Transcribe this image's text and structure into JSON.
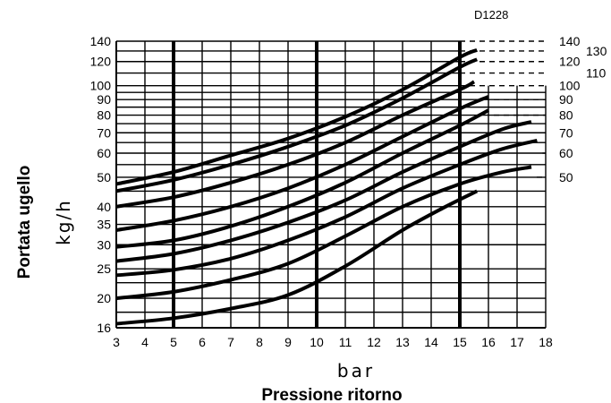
{
  "chart_data": {
    "type": "line",
    "code": "D1228",
    "xlabel": "Pressione ritorno",
    "xunit": "bar",
    "ylabel": "Portata ugello",
    "yunit": "kg/h",
    "xlim": [
      3,
      18
    ],
    "ylim": [
      16,
      140
    ],
    "yscale": "log",
    "grid": true,
    "x_ticks": [
      "3",
      "4",
      "5",
      "6",
      "7",
      "8",
      "9",
      "10",
      "11",
      "12",
      "13",
      "14",
      "15",
      "16",
      "17",
      "18"
    ],
    "y_ticks": [
      "16",
      "20",
      "25",
      "30",
      "35",
      "40",
      "50",
      "60",
      "70",
      "80",
      "90",
      "100",
      "120",
      "140"
    ],
    "right_labels": [
      "140",
      "130",
      "120",
      "110",
      "100",
      "90",
      "80",
      "70",
      "60",
      "50"
    ],
    "emphasized_x": [
      5,
      10,
      15
    ],
    "series": [
      {
        "x": [
          3,
          5,
          7,
          9,
          11,
          13,
          14.5,
          15.6
        ],
        "values": [
          16.5,
          17.2,
          18.5,
          20.5,
          25.5,
          33.5,
          40,
          45
        ]
      },
      {
        "x": [
          3,
          5,
          7,
          9,
          11,
          13,
          15,
          16.5,
          17.5
        ],
        "values": [
          20,
          21,
          23,
          26,
          32,
          40,
          47.5,
          52,
          54
        ]
      },
      {
        "x": [
          3,
          5,
          7,
          9,
          11,
          13,
          15,
          16.5,
          17.7
        ],
        "values": [
          23.8,
          24.8,
          27,
          31,
          37,
          46,
          55,
          62,
          66
        ]
      },
      {
        "x": [
          3,
          5,
          7,
          9,
          11,
          13,
          15,
          16.5,
          17.5
        ],
        "values": [
          26.5,
          28,
          31,
          35.5,
          42,
          52,
          63,
          72,
          76
        ]
      },
      {
        "x": [
          3,
          5,
          7,
          9,
          11,
          13,
          15,
          16
        ],
        "values": [
          29.5,
          31,
          34.5,
          40,
          48,
          60,
          74,
          83
        ]
      },
      {
        "x": [
          3,
          5,
          7,
          9,
          11,
          13,
          15,
          16
        ],
        "values": [
          33.5,
          36,
          40,
          46,
          55,
          68,
          84,
          92
        ]
      },
      {
        "x": [
          3,
          5,
          7,
          9,
          11,
          13,
          15,
          15.5
        ],
        "values": [
          40,
          43,
          48,
          55,
          65,
          80,
          97,
          103
        ]
      },
      {
        "x": [
          3,
          5,
          7,
          9,
          11,
          13,
          15,
          15.6
        ],
        "values": [
          45,
          49,
          55,
          63,
          74,
          91,
          115,
          122
        ]
      },
      {
        "x": [
          3,
          5,
          7,
          9,
          11,
          13,
          15,
          15.6
        ],
        "values": [
          47.5,
          52,
          59,
          67,
          79,
          97,
          124,
          131
        ]
      }
    ]
  }
}
